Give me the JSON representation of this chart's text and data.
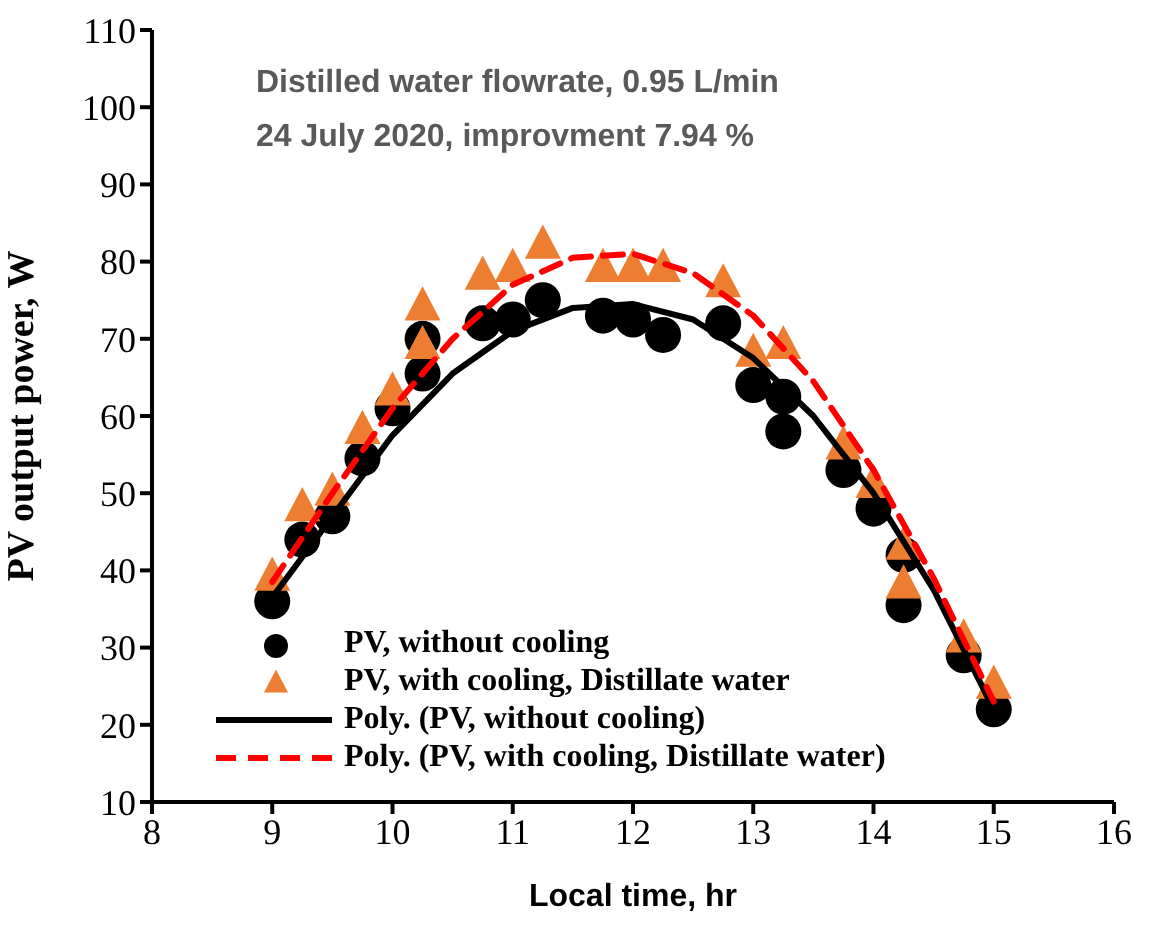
{
  "chart_data": {
    "type": "scatter",
    "xlabel": "Local time, hr",
    "ylabel": "PV output power, W",
    "annotations": [
      "Distilled water flowrate, 0.95 L/min",
      "24 July 2020, improvment 7.94 %"
    ],
    "xlim": [
      8,
      16
    ],
    "xticks": [
      8,
      9,
      10,
      11,
      12,
      13,
      14,
      15,
      16
    ],
    "ylim": [
      10,
      110
    ],
    "yticks": [
      10,
      20,
      30,
      40,
      50,
      60,
      70,
      80,
      90,
      100,
      110
    ],
    "grid": false,
    "legend": "bottom left",
    "series": [
      {
        "name": "PV, without cooling",
        "marker": "circle",
        "color": "#000000",
        "x": [
          9,
          9.25,
          9.5,
          9.75,
          10,
          10.25,
          10.25,
          10.75,
          11,
          11.25,
          11.75,
          12,
          12.25,
          12.75,
          13,
          13.25,
          13.25,
          13.75,
          14,
          14.25,
          14.25,
          14.75,
          15
        ],
        "values": [
          36,
          44,
          47,
          54.5,
          61,
          65.5,
          70,
          72,
          72.5,
          75,
          73,
          72.5,
          70.5,
          72,
          64,
          62.5,
          58,
          53,
          48,
          42,
          35.5,
          29,
          22
        ]
      },
      {
        "name": "PV, with cooling, Distillate water",
        "marker": "triangle",
        "color": "#ed7d31",
        "x": [
          9,
          9.25,
          9.5,
          9.75,
          10,
          10.25,
          10.25,
          10.75,
          11,
          11.25,
          11.75,
          12,
          12.25,
          12.75,
          13,
          13.25,
          13.75,
          14,
          14.25,
          14.25,
          14.75,
          15
        ],
        "values": [
          39,
          48,
          50,
          58,
          63,
          69,
          74,
          78,
          79,
          82,
          79,
          79,
          79,
          77,
          68,
          69,
          56,
          51,
          43,
          38,
          31,
          25
        ]
      },
      {
        "name": "Poly. (PV, without cooling)",
        "type": "line",
        "marker": "none",
        "line_style": "solid",
        "color": "#000000",
        "x": [
          9,
          9.5,
          10,
          10.5,
          11,
          11.5,
          12,
          12.5,
          13,
          13.5,
          14,
          14.5,
          15
        ],
        "values": [
          36.5,
          47,
          57.5,
          65.5,
          71,
          74,
          74.5,
          72.5,
          67.5,
          60,
          50,
          37.5,
          22
        ]
      },
      {
        "name": "Poly. (PV, with cooling, Distillate water)",
        "type": "line",
        "marker": "none",
        "line_style": "dashed",
        "color": "#ff0000",
        "x": [
          9,
          9.5,
          10,
          10.5,
          11,
          11.5,
          12,
          12.5,
          13,
          13.5,
          14,
          14.5,
          15
        ],
        "values": [
          38.5,
          50,
          61,
          70,
          77,
          80.5,
          81,
          78.5,
          73,
          64.5,
          53,
          39,
          23
        ]
      }
    ]
  }
}
